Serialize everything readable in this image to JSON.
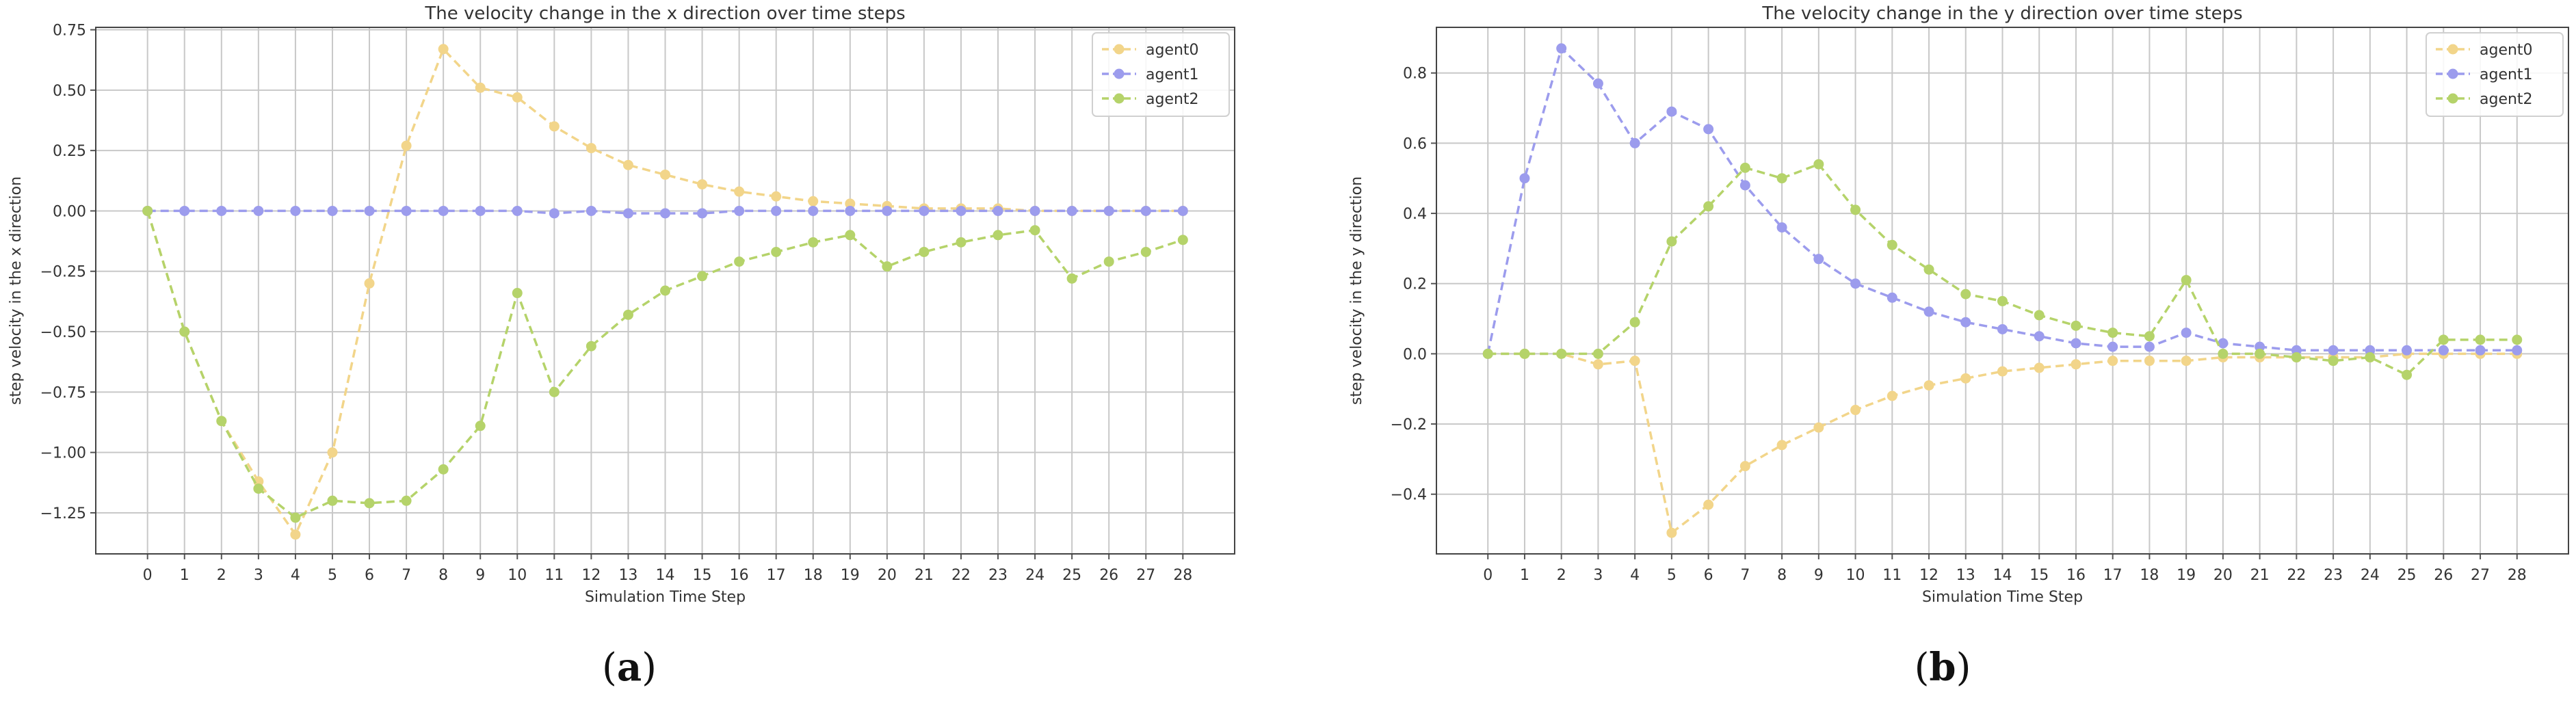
{
  "chart_data": [
    {
      "type": "line",
      "panel_label": "a",
      "title": "The velocity change in the x direction over time steps",
      "xlabel": "Simulation Time Step",
      "ylabel": "step velocity in the x direction",
      "x": [
        0,
        1,
        2,
        3,
        4,
        5,
        6,
        7,
        8,
        9,
        10,
        11,
        12,
        13,
        14,
        15,
        16,
        17,
        18,
        19,
        20,
        21,
        22,
        23,
        24,
        25,
        26,
        27,
        28
      ],
      "xlim": [
        -1.4,
        29.4
      ],
      "ylim": [
        -1.42,
        0.76
      ],
      "yticks": [
        -1.25,
        -1.0,
        -0.75,
        -0.5,
        -0.25,
        0.0,
        0.25,
        0.5,
        0.75
      ],
      "ytick_labels": [
        "−1.25",
        "−1.00",
        "−0.75",
        "−0.50",
        "−0.25",
        "0.00",
        "0.25",
        "0.50",
        "0.75"
      ],
      "grid": true,
      "legend": "top-right",
      "series": [
        {
          "name": "agent0",
          "color": "#f2d58a",
          "values": [
            0.0,
            -0.5,
            -0.87,
            -1.12,
            -1.34,
            -1.0,
            -0.3,
            0.27,
            0.67,
            0.51,
            0.47,
            0.35,
            0.26,
            0.19,
            0.15,
            0.11,
            0.08,
            0.06,
            0.04,
            0.03,
            0.02,
            0.01,
            0.01,
            0.01,
            0.0,
            0.0,
            0.0,
            0.0,
            0.0
          ]
        },
        {
          "name": "agent1",
          "color": "#9c9ced",
          "values": [
            0.0,
            0.0,
            0.0,
            0.0,
            0.0,
            0.0,
            0.0,
            0.0,
            0.0,
            0.0,
            0.0,
            -0.01,
            0.0,
            -0.01,
            -0.01,
            -0.01,
            0.0,
            0.0,
            0.0,
            0.0,
            0.0,
            0.0,
            0.0,
            0.0,
            0.0,
            0.0,
            0.0,
            0.0,
            0.0
          ]
        },
        {
          "name": "agent2",
          "color": "#b5d36a",
          "values": [
            0.0,
            -0.5,
            -0.87,
            -1.15,
            -1.27,
            -1.2,
            -1.21,
            -1.2,
            -1.07,
            -0.89,
            -0.34,
            -0.75,
            -0.56,
            -0.43,
            -0.33,
            -0.27,
            -0.21,
            -0.17,
            -0.13,
            -0.1,
            -0.23,
            -0.17,
            -0.13,
            -0.1,
            -0.08,
            -0.28,
            -0.21,
            -0.17,
            -0.12
          ]
        }
      ]
    },
    {
      "type": "line",
      "panel_label": "b",
      "title": "The velocity change in the y direction over time steps",
      "xlabel": "Simulation Time Step",
      "ylabel": "step velocity in the y direction",
      "x": [
        0,
        1,
        2,
        3,
        4,
        5,
        6,
        7,
        8,
        9,
        10,
        11,
        12,
        13,
        14,
        15,
        16,
        17,
        18,
        19,
        20,
        21,
        22,
        23,
        24,
        25,
        26,
        27,
        28
      ],
      "xlim": [
        -1.4,
        29.4
      ],
      "ylim": [
        -0.57,
        0.93
      ],
      "yticks": [
        -0.4,
        -0.2,
        0.0,
        0.2,
        0.4,
        0.6,
        0.8
      ],
      "ytick_labels": [
        "−0.4",
        "−0.2",
        "0.0",
        "0.2",
        "0.4",
        "0.6",
        "0.8"
      ],
      "grid": true,
      "legend": "top-right",
      "series": [
        {
          "name": "agent0",
          "color": "#f2d58a",
          "values": [
            0.0,
            0.0,
            0.0,
            -0.03,
            -0.02,
            -0.51,
            -0.43,
            -0.32,
            -0.26,
            -0.21,
            -0.16,
            -0.12,
            -0.09,
            -0.07,
            -0.05,
            -0.04,
            -0.03,
            -0.02,
            -0.02,
            -0.02,
            -0.01,
            -0.01,
            -0.01,
            -0.01,
            -0.01,
            0.0,
            0.0,
            0.0,
            0.0
          ]
        },
        {
          "name": "agent1",
          "color": "#9c9ced",
          "values": [
            0.0,
            0.5,
            0.87,
            0.77,
            0.6,
            0.69,
            0.64,
            0.48,
            0.36,
            0.27,
            0.2,
            0.16,
            0.12,
            0.09,
            0.07,
            0.05,
            0.03,
            0.02,
            0.02,
            0.06,
            0.03,
            0.02,
            0.01,
            0.01,
            0.01,
            0.01,
            0.01,
            0.01,
            0.01
          ]
        },
        {
          "name": "agent2",
          "color": "#b5d36a",
          "values": [
            0.0,
            0.0,
            0.0,
            0.0,
            0.09,
            0.32,
            0.42,
            0.53,
            0.5,
            0.54,
            0.41,
            0.31,
            0.24,
            0.17,
            0.15,
            0.11,
            0.08,
            0.06,
            0.05,
            0.21,
            0.0,
            0.0,
            -0.01,
            -0.02,
            -0.01,
            -0.06,
            0.04,
            0.04,
            0.04
          ]
        }
      ]
    }
  ]
}
